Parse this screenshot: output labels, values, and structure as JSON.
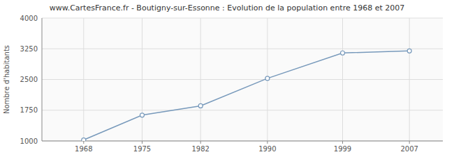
{
  "chart_data": {
    "type": "line",
    "title": "www.CartesFrance.fr - Boutigny-sur-Essonne : Evolution de la population entre 1968 et 2007",
    "ylabel": "Nombre d'habitants",
    "x": [
      1968,
      1975,
      1982,
      1990,
      1999,
      2007
    ],
    "values": [
      1025,
      1630,
      1857,
      2527,
      3148,
      3198
    ],
    "color": "#7799bb",
    "marker": "circle",
    "xlim": [
      1963,
      2011
    ],
    "xticks": [
      1968,
      1975,
      1982,
      1990,
      1999,
      2007
    ],
    "ylim": [
      1000,
      4000
    ],
    "yticks": [
      1000,
      1750,
      2500,
      3250,
      4000
    ],
    "grid": true
  }
}
